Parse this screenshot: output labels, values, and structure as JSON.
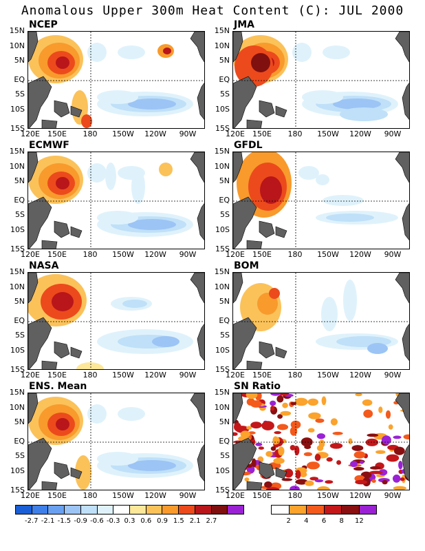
{
  "title": "Anomalous Upper 300m Heat Content (C): JUL 2000",
  "lat_labels": [
    "15N",
    "10N",
    "5N",
    "EQ",
    "5S",
    "10S",
    "15S"
  ],
  "lon_labels": [
    "120E",
    "150E",
    "180",
    "150W",
    "120W",
    "90W"
  ],
  "panels": [
    {
      "name": "NCEP"
    },
    {
      "name": "JMA"
    },
    {
      "name": "ECMWF"
    },
    {
      "name": "GFDL"
    },
    {
      "name": "NASA"
    },
    {
      "name": "BOM"
    },
    {
      "name": "ENS. Mean"
    },
    {
      "name": "SN Ratio"
    }
  ],
  "colorbar_anomaly": {
    "labels": [
      "-2.7",
      "-2.1",
      "-1.5",
      "-0.9",
      "-0.6",
      "-0.3",
      "0.3",
      "0.6",
      "0.9",
      "1.5",
      "2.1",
      "2.7"
    ],
    "colors": [
      "#1a5fd6",
      "#3f7fe8",
      "#6aa0f0",
      "#9cc4f5",
      "#bfe0f8",
      "#dff2fb",
      "#ffffff",
      "#fde89a",
      "#fbc25a",
      "#f89a2c",
      "#ec4a1c",
      "#b8161a",
      "#80100f",
      "#9b22d4"
    ]
  },
  "colorbar_sn": {
    "labels": [
      "2",
      "4",
      "6",
      "8",
      "12"
    ],
    "colors": [
      "#ffffff",
      "#fba32c",
      "#f35a1c",
      "#c4171a",
      "#8a0f10",
      "#9b22d4"
    ]
  },
  "colors": {
    "land": "#606060",
    "background": "#ffffff"
  }
}
